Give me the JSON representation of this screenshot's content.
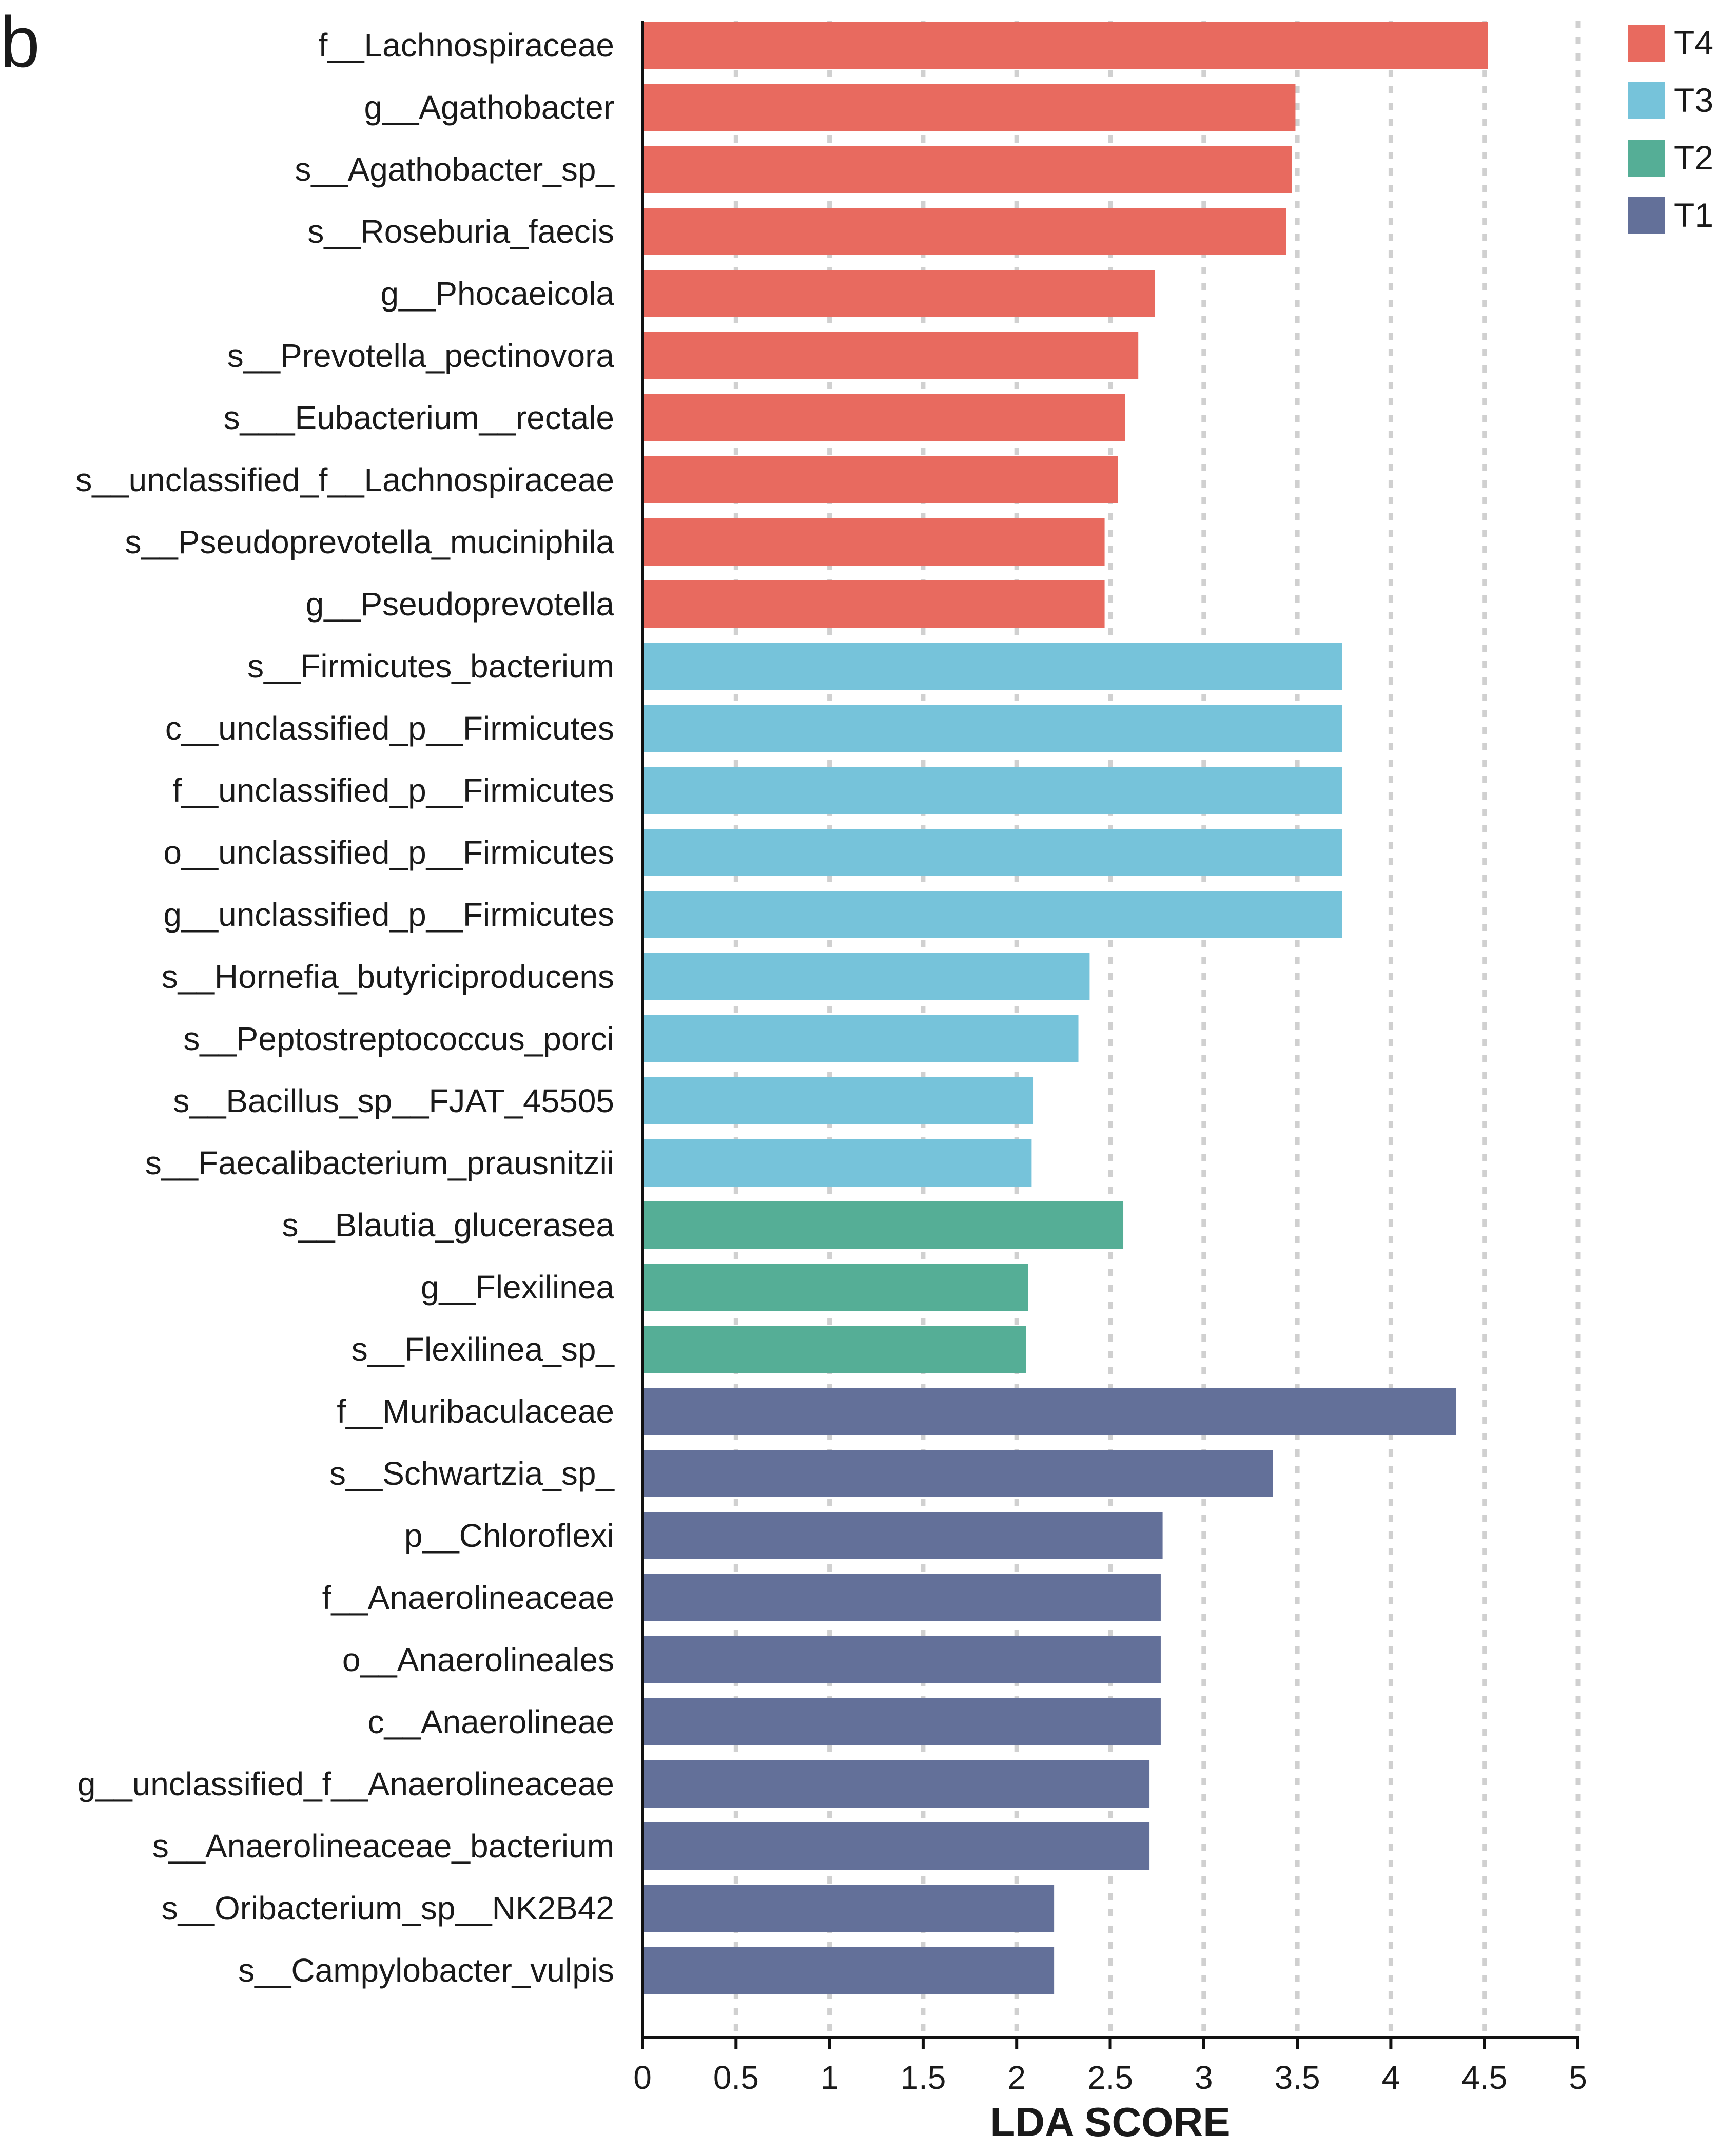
{
  "panel_label": "b",
  "chart_data": {
    "type": "bar",
    "orientation": "horizontal",
    "xlabel": "LDA SCORE",
    "ylabel": "",
    "xlim": [
      0,
      5
    ],
    "xticks": [
      "0",
      "0.5",
      "1",
      "1.5",
      "2",
      "2.5",
      "3",
      "3.5",
      "4",
      "4.5",
      "5"
    ],
    "grid": "vertical dotted",
    "legend_position": "top-right",
    "groups": [
      {
        "name": "T4",
        "color": "#E86A5F"
      },
      {
        "name": "T3",
        "color": "#76C3DA"
      },
      {
        "name": "T2",
        "color": "#55AE96"
      },
      {
        "name": "T1",
        "color": "#637099"
      }
    ],
    "legend_order": [
      "T4",
      "T3",
      "T2",
      "T1"
    ],
    "bars": [
      {
        "label": "f__Lachnospiraceae",
        "value": 4.52,
        "group": "T4"
      },
      {
        "label": "g__Agathobacter",
        "value": 3.49,
        "group": "T4"
      },
      {
        "label": "s__Agathobacter_sp_",
        "value": 3.47,
        "group": "T4"
      },
      {
        "label": "s__Roseburia_faecis",
        "value": 3.44,
        "group": "T4"
      },
      {
        "label": "g__Phocaeicola",
        "value": 2.74,
        "group": "T4"
      },
      {
        "label": "s__Prevotella_pectinovora",
        "value": 2.65,
        "group": "T4"
      },
      {
        "label": "s___Eubacterium__rectale",
        "value": 2.58,
        "group": "T4"
      },
      {
        "label": "s__unclassified_f__Lachnospiraceae",
        "value": 2.54,
        "group": "T4"
      },
      {
        "label": "s__Pseudoprevotella_muciniphila",
        "value": 2.47,
        "group": "T4"
      },
      {
        "label": "g__Pseudoprevotella",
        "value": 2.47,
        "group": "T4"
      },
      {
        "label": "s__Firmicutes_bacterium",
        "value": 3.74,
        "group": "T3"
      },
      {
        "label": "c__unclassified_p__Firmicutes",
        "value": 3.74,
        "group": "T3"
      },
      {
        "label": "f__unclassified_p__Firmicutes",
        "value": 3.74,
        "group": "T3"
      },
      {
        "label": "o__unclassified_p__Firmicutes",
        "value": 3.74,
        "group": "T3"
      },
      {
        "label": "g__unclassified_p__Firmicutes",
        "value": 3.74,
        "group": "T3"
      },
      {
        "label": "s__Hornefia_butyriciproducens",
        "value": 2.39,
        "group": "T3"
      },
      {
        "label": "s__Peptostreptococcus_porci",
        "value": 2.33,
        "group": "T3"
      },
      {
        "label": "s__Bacillus_sp__FJAT_45505",
        "value": 2.09,
        "group": "T3"
      },
      {
        "label": "s__Faecalibacterium_prausnitzii",
        "value": 2.08,
        "group": "T3"
      },
      {
        "label": "s__Blautia_glucerasea",
        "value": 2.57,
        "group": "T2"
      },
      {
        "label": "g__Flexilinea",
        "value": 2.06,
        "group": "T2"
      },
      {
        "label": "s__Flexilinea_sp_",
        "value": 2.05,
        "group": "T2"
      },
      {
        "label": "f__Muribaculaceae",
        "value": 4.35,
        "group": "T1"
      },
      {
        "label": "s__Schwartzia_sp_",
        "value": 3.37,
        "group": "T1"
      },
      {
        "label": "p__Chloroflexi",
        "value": 2.78,
        "group": "T1"
      },
      {
        "label": "f__Anaerolineaceae",
        "value": 2.77,
        "group": "T1"
      },
      {
        "label": "o__Anaerolineales",
        "value": 2.77,
        "group": "T1"
      },
      {
        "label": "c__Anaerolineae",
        "value": 2.77,
        "group": "T1"
      },
      {
        "label": "g__unclassified_f__Anaerolineaceae",
        "value": 2.71,
        "group": "T1"
      },
      {
        "label": "s__Anaerolineaceae_bacterium",
        "value": 2.71,
        "group": "T1"
      },
      {
        "label": "s__Oribacterium_sp__NK2B42",
        "value": 2.2,
        "group": "T1"
      },
      {
        "label": "s__Campylobacter_vulpis",
        "value": 2.2,
        "group": "T1"
      }
    ]
  }
}
